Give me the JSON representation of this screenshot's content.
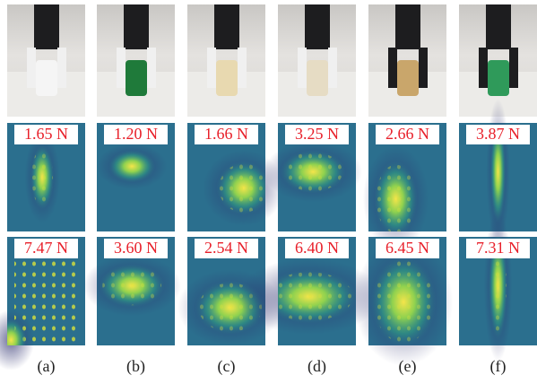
{
  "panels": [
    {
      "label": "(a)",
      "force_top": "1.65 N",
      "force_bottom": "7.47 N"
    },
    {
      "label": "(b)",
      "force_top": "1.20 N",
      "force_bottom": "3.60 N"
    },
    {
      "label": "(c)",
      "force_top": "1.66 N",
      "force_bottom": "2.54 N"
    },
    {
      "label": "(d)",
      "force_top": "3.25 N",
      "force_bottom": "6.40 N"
    },
    {
      "label": "(e)",
      "force_top": "2.66 N",
      "force_bottom": "6.45 N"
    },
    {
      "label": "(f)",
      "force_top": "3.87 N",
      "force_bottom": "7.31 N"
    }
  ]
}
